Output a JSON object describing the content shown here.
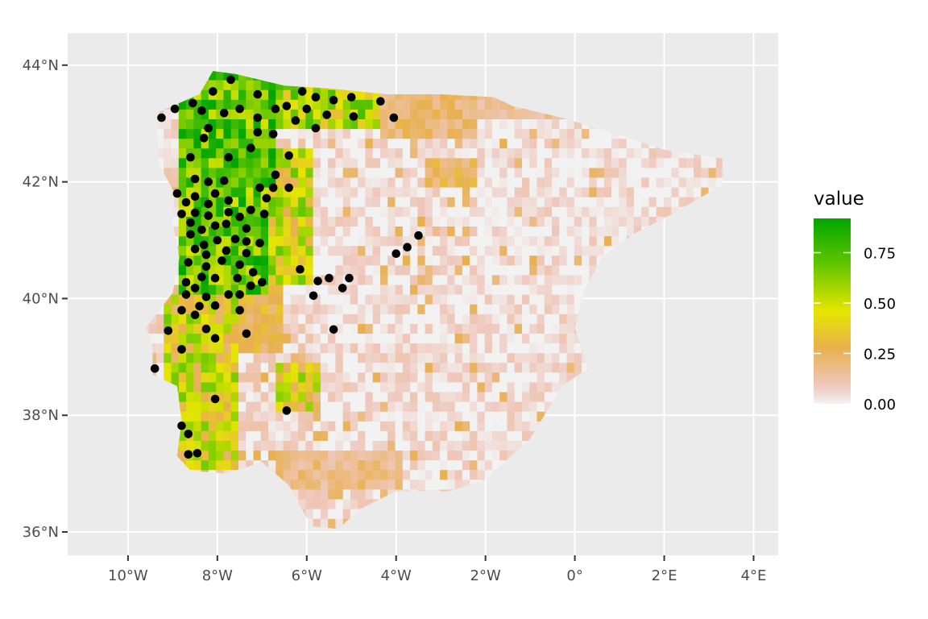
{
  "map": {
    "x_axis": {
      "range": [
        -11.35,
        4.55
      ],
      "ticks": [
        {
          "value": -10,
          "label": "10°W"
        },
        {
          "value": -8,
          "label": "8°W"
        },
        {
          "value": -6,
          "label": "6°W"
        },
        {
          "value": -4,
          "label": "4°W"
        },
        {
          "value": -2,
          "label": "2°W"
        },
        {
          "value": 0,
          "label": "0°"
        },
        {
          "value": 2,
          "label": "2°E"
        },
        {
          "value": 4,
          "label": "4°E"
        }
      ]
    },
    "y_axis": {
      "range": [
        35.6,
        44.55
      ],
      "ticks": [
        {
          "value": 36,
          "label": "36°N"
        },
        {
          "value": 38,
          "label": "38°N"
        },
        {
          "value": 40,
          "label": "40°N"
        },
        {
          "value": 42,
          "label": "42°N"
        },
        {
          "value": 44,
          "label": "44°N"
        }
      ]
    },
    "panel_background": "#ebebeb",
    "grid_color": "#ffffff",
    "point_color": "#000000",
    "legend": {
      "title": "value",
      "position": "right",
      "range": [
        0,
        0.92
      ],
      "breaks": [
        {
          "value": 0.0,
          "label": "0.00"
        },
        {
          "value": 0.25,
          "label": "0.25"
        },
        {
          "value": 0.5,
          "label": "0.50"
        },
        {
          "value": 0.75,
          "label": "0.75"
        }
      ],
      "colors": [
        {
          "stop": 0.0,
          "color": "#f2f2f2"
        },
        {
          "stop": 0.1,
          "color": "#efc8bc"
        },
        {
          "stop": 0.3,
          "color": "#e8b04e"
        },
        {
          "stop": 0.5,
          "color": "#e6e600"
        },
        {
          "stop": 0.75,
          "color": "#63c600"
        },
        {
          "stop": 1.0,
          "color": "#00a600"
        }
      ]
    },
    "raster": {
      "cell_size": 0.167,
      "regions": [
        {
          "name": "west-coast-high",
          "lon": [
            -9.0,
            -7.0
          ],
          "lat": [
            40.0,
            43.6
          ],
          "value": 0.7
        },
        {
          "name": "northwest-green",
          "lon": [
            -8.3,
            -6.7
          ],
          "lat": [
            41.8,
            43.8
          ],
          "value": 0.78
        },
        {
          "name": "cantabrian-mixed",
          "lon": [
            -7.0,
            -4.5
          ],
          "lat": [
            42.8,
            43.6
          ],
          "value": 0.55
        },
        {
          "name": "north-orange",
          "lon": [
            -4.5,
            -2.2
          ],
          "lat": [
            42.6,
            43.5
          ],
          "value": 0.22
        },
        {
          "name": "pyrenees-orange",
          "lon": [
            -2.2,
            0.0
          ],
          "lat": [
            43.0,
            43.5
          ],
          "value": 0.14
        },
        {
          "name": "west-central-yellow",
          "lon": [
            -7.0,
            -6.0
          ],
          "lat": [
            40.2,
            42.5
          ],
          "value": 0.48
        },
        {
          "name": "central-west-orange",
          "lon": [
            -7.6,
            -6.6
          ],
          "lat": [
            39.0,
            40.2
          ],
          "value": 0.27
        },
        {
          "name": "portugal-south",
          "lon": [
            -9.3,
            -7.6
          ],
          "lat": [
            37.0,
            40.0
          ],
          "value": 0.45
        },
        {
          "name": "portugal-south-west",
          "lon": [
            -8.9,
            -8.2
          ],
          "lat": [
            37.2,
            38.3
          ],
          "value": 0.6
        },
        {
          "name": "southwest-yellow-patch",
          "lon": [
            -6.8,
            -5.7
          ],
          "lat": [
            38.0,
            38.8
          ],
          "value": 0.42
        },
        {
          "name": "south-orange-band",
          "lon": [
            -6.7,
            -4.0
          ],
          "lat": [
            36.6,
            37.4
          ],
          "value": 0.18
        },
        {
          "name": "iberian-range-orange",
          "lon": [
            -3.4,
            -2.3
          ],
          "lat": [
            41.8,
            42.3
          ],
          "value": 0.24
        },
        {
          "name": "interior-low",
          "lon": [
            -6.0,
            3.3
          ],
          "lat": [
            36.6,
            43.0
          ],
          "value": 0.03
        }
      ]
    },
    "points": [
      {
        "lon": -7.7,
        "lat": 43.75
      },
      {
        "lon": -8.1,
        "lat": 43.55
      },
      {
        "lon": -7.1,
        "lat": 43.5
      },
      {
        "lon": -6.1,
        "lat": 43.55
      },
      {
        "lon": -5.8,
        "lat": 43.45
      },
      {
        "lon": -5.0,
        "lat": 43.45
      },
      {
        "lon": -5.4,
        "lat": 43.4
      },
      {
        "lon": -4.35,
        "lat": 43.38
      },
      {
        "lon": -6.45,
        "lat": 43.3
      },
      {
        "lon": -8.55,
        "lat": 43.35
      },
      {
        "lon": -8.95,
        "lat": 43.25
      },
      {
        "lon": -8.35,
        "lat": 43.22
      },
      {
        "lon": -7.5,
        "lat": 43.25
      },
      {
        "lon": -6.7,
        "lat": 43.25
      },
      {
        "lon": -6.0,
        "lat": 43.25
      },
      {
        "lon": -9.25,
        "lat": 43.1
      },
      {
        "lon": -7.85,
        "lat": 43.18
      },
      {
        "lon": -7.1,
        "lat": 43.1
      },
      {
        "lon": -6.25,
        "lat": 43.05
      },
      {
        "lon": -5.55,
        "lat": 43.15
      },
      {
        "lon": -4.95,
        "lat": 43.12
      },
      {
        "lon": -4.05,
        "lat": 43.1
      },
      {
        "lon": -8.2,
        "lat": 42.92
      },
      {
        "lon": -5.8,
        "lat": 42.92
      },
      {
        "lon": -7.1,
        "lat": 42.85
      },
      {
        "lon": -6.75,
        "lat": 42.82
      },
      {
        "lon": -8.3,
        "lat": 42.75
      },
      {
        "lon": -7.25,
        "lat": 42.58
      },
      {
        "lon": -6.4,
        "lat": 42.45
      },
      {
        "lon": -8.6,
        "lat": 42.42
      },
      {
        "lon": -7.75,
        "lat": 42.42
      },
      {
        "lon": -6.7,
        "lat": 42.12
      },
      {
        "lon": -8.5,
        "lat": 42.05
      },
      {
        "lon": -8.2,
        "lat": 42.0
      },
      {
        "lon": -7.85,
        "lat": 42.02
      },
      {
        "lon": -7.05,
        "lat": 41.9
      },
      {
        "lon": -6.75,
        "lat": 41.9
      },
      {
        "lon": -6.4,
        "lat": 41.9
      },
      {
        "lon": -8.9,
        "lat": 41.8
      },
      {
        "lon": -8.05,
        "lat": 41.8
      },
      {
        "lon": -8.5,
        "lat": 41.75
      },
      {
        "lon": -6.9,
        "lat": 41.72
      },
      {
        "lon": -8.7,
        "lat": 41.65
      },
      {
        "lon": -7.75,
        "lat": 41.68
      },
      {
        "lon": -8.2,
        "lat": 41.62
      },
      {
        "lon": -7.25,
        "lat": 41.52
      },
      {
        "lon": -8.8,
        "lat": 41.45
      },
      {
        "lon": -8.5,
        "lat": 41.47
      },
      {
        "lon": -8.2,
        "lat": 41.42
      },
      {
        "lon": -7.75,
        "lat": 41.48
      },
      {
        "lon": -6.95,
        "lat": 41.45
      },
      {
        "lon": -7.5,
        "lat": 41.4
      },
      {
        "lon": -8.6,
        "lat": 41.3
      },
      {
        "lon": -8.05,
        "lat": 41.25
      },
      {
        "lon": -7.8,
        "lat": 41.28
      },
      {
        "lon": -7.35,
        "lat": 41.2
      },
      {
        "lon": -8.35,
        "lat": 41.18
      },
      {
        "lon": -8.6,
        "lat": 41.1
      },
      {
        "lon": -7.6,
        "lat": 41.02
      },
      {
        "lon": -8.0,
        "lat": 41.0
      },
      {
        "lon": -7.35,
        "lat": 40.98
      },
      {
        "lon": -7.05,
        "lat": 40.95
      },
      {
        "lon": -8.3,
        "lat": 40.92
      },
      {
        "lon": -8.5,
        "lat": 40.85
      },
      {
        "lon": -7.8,
        "lat": 40.82
      },
      {
        "lon": -7.35,
        "lat": 40.78
      },
      {
        "lon": -8.25,
        "lat": 40.75
      },
      {
        "lon": -3.5,
        "lat": 41.08
      },
      {
        "lon": -3.75,
        "lat": 40.88
      },
      {
        "lon": -4.0,
        "lat": 40.77
      },
      {
        "lon": -7.9,
        "lat": 40.65
      },
      {
        "lon": -8.65,
        "lat": 40.62
      },
      {
        "lon": -7.5,
        "lat": 40.58
      },
      {
        "lon": -8.25,
        "lat": 40.55
      },
      {
        "lon": -6.15,
        "lat": 40.5
      },
      {
        "lon": -7.2,
        "lat": 40.45
      },
      {
        "lon": -5.05,
        "lat": 40.35
      },
      {
        "lon": -8.35,
        "lat": 40.37
      },
      {
        "lon": -8.05,
        "lat": 40.35
      },
      {
        "lon": -7.55,
        "lat": 40.35
      },
      {
        "lon": -5.5,
        "lat": 40.35
      },
      {
        "lon": -5.75,
        "lat": 40.3
      },
      {
        "lon": -8.7,
        "lat": 40.28
      },
      {
        "lon": -7.0,
        "lat": 40.28
      },
      {
        "lon": -7.25,
        "lat": 40.22
      },
      {
        "lon": -8.5,
        "lat": 40.18
      },
      {
        "lon": -5.2,
        "lat": 40.18
      },
      {
        "lon": -8.25,
        "lat": 40.03
      },
      {
        "lon": -7.75,
        "lat": 40.07
      },
      {
        "lon": -7.5,
        "lat": 40.07
      },
      {
        "lon": -8.7,
        "lat": 40.07
      },
      {
        "lon": -5.85,
        "lat": 40.05
      },
      {
        "lon": -8.05,
        "lat": 39.88
      },
      {
        "lon": -8.4,
        "lat": 39.87
      },
      {
        "lon": -8.8,
        "lat": 39.8
      },
      {
        "lon": -7.5,
        "lat": 39.8
      },
      {
        "lon": -8.5,
        "lat": 39.72
      },
      {
        "lon": -8.25,
        "lat": 39.48
      },
      {
        "lon": -9.1,
        "lat": 39.45
      },
      {
        "lon": -5.4,
        "lat": 39.47
      },
      {
        "lon": -7.35,
        "lat": 39.4
      },
      {
        "lon": -8.05,
        "lat": 39.32
      },
      {
        "lon": -8.8,
        "lat": 39.13
      },
      {
        "lon": -9.4,
        "lat": 38.8
      },
      {
        "lon": -8.05,
        "lat": 38.28
      },
      {
        "lon": -6.45,
        "lat": 38.08
      },
      {
        "lon": -8.8,
        "lat": 37.82
      },
      {
        "lon": -8.65,
        "lat": 37.68
      },
      {
        "lon": -8.45,
        "lat": 37.35
      },
      {
        "lon": -8.65,
        "lat": 37.33
      }
    ]
  }
}
